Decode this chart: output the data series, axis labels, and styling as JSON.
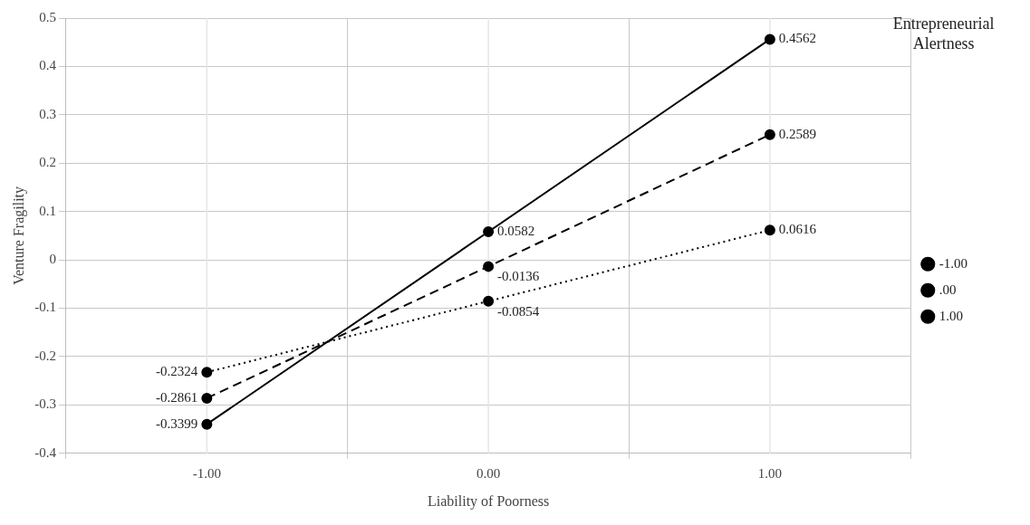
{
  "chart_data": {
    "type": "line",
    "xlabel": "Liability of Poorness",
    "ylabel": "Venture Fragility",
    "legend_title": "Entrepreneurial Alertness",
    "categories": [
      "-1.00",
      "0.00",
      "1.00"
    ],
    "series": [
      {
        "name": "-1.00",
        "color": "#000000",
        "line_style": "solid",
        "values": [
          -0.3399,
          0.0582,
          0.4562
        ]
      },
      {
        "name": ".00",
        "color": "#000000",
        "line_style": "dashed",
        "values": [
          -0.2861,
          -0.0136,
          0.2589
        ]
      },
      {
        "name": "1.00",
        "color": "#000000",
        "line_style": "dotted",
        "values": [
          -0.2324,
          -0.0854,
          0.0616
        ]
      }
    ],
    "ylim": [
      -0.4,
      0.5
    ],
    "yticks": [
      -0.4,
      -0.3,
      -0.2,
      -0.1,
      0,
      0.1,
      0.2,
      0.3,
      0.4,
      0.5
    ],
    "grid": true,
    "legend": "right",
    "marker": "circle",
    "data_labels": true
  }
}
